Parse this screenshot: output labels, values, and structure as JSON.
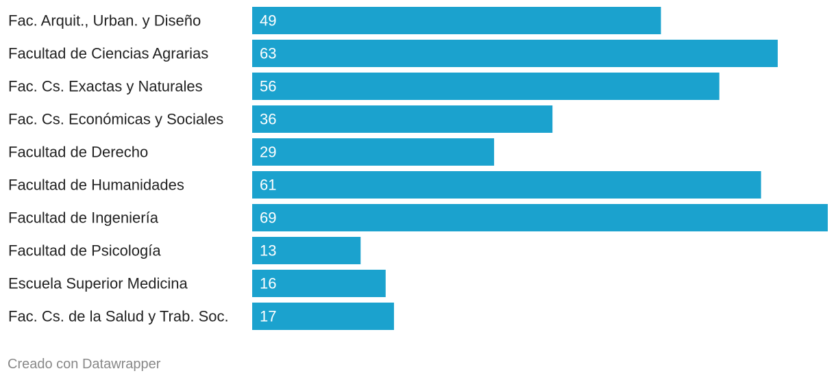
{
  "chart_data": {
    "type": "bar",
    "orientation": "horizontal",
    "categories": [
      "Fac. Arquit., Urban. y Diseño",
      "Facultad de Ciencias Agrarias",
      "Fac. Cs. Exactas y Naturales",
      "Fac. Cs. Económicas y Sociales",
      "Facultad de Derecho",
      "Facultad de Humanidades",
      "Facultad de Ingeniería",
      "Facultad de Psicología",
      "Escuela Superior Medicina",
      "Fac. Cs. de la Salud y Trab. Soc."
    ],
    "values": [
      49,
      63,
      56,
      36,
      29,
      61,
      69,
      13,
      16,
      17
    ],
    "title": "",
    "xlabel": "",
    "ylabel": "",
    "xlim": [
      0,
      69
    ],
    "grid": false,
    "legend": "none",
    "bar_color": "#1ba2ce",
    "value_label_color": "#ffffff",
    "category_label_color": "#222222"
  },
  "footer": {
    "credit": "Creado con Datawrapper"
  },
  "colors": {
    "footer_text": "#888888",
    "background": "#ffffff"
  }
}
